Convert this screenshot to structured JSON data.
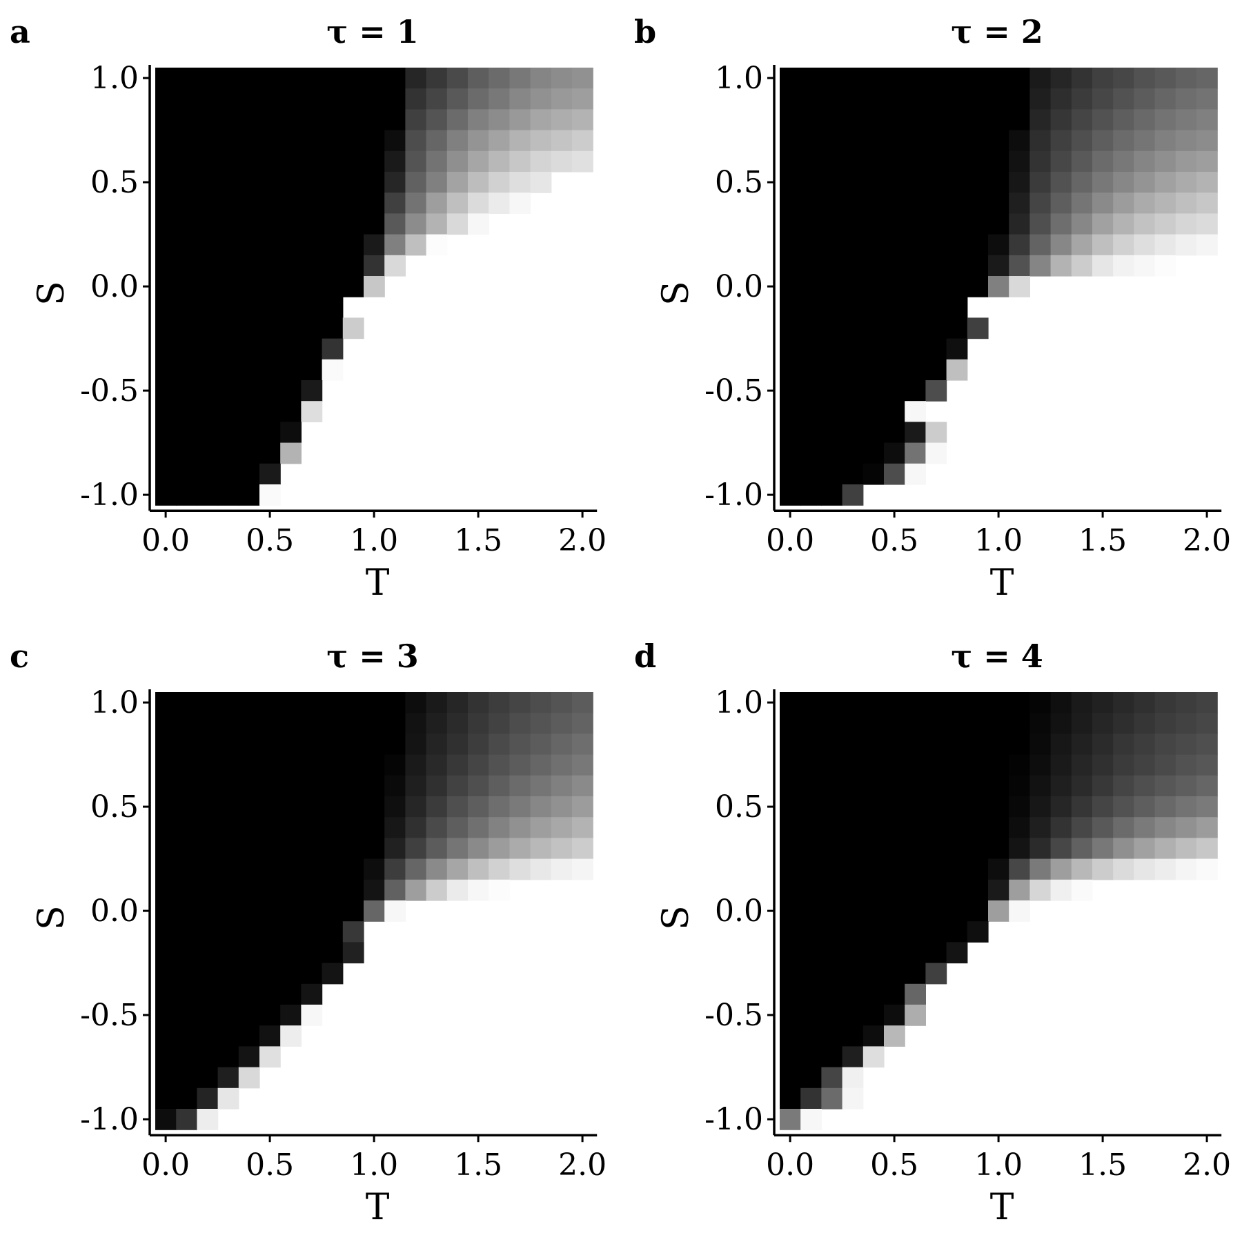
{
  "chart_data": [
    {
      "type": "heatmap",
      "panel_label": "a",
      "title": "τ = 1",
      "xlabel": "T",
      "ylabel": "S",
      "xlim": [
        0,
        2
      ],
      "ylim": [
        -1,
        1
      ],
      "xticks": [
        "0.0",
        "0.5",
        "1.0",
        "1.5",
        "2.0"
      ],
      "yticks": [
        "-1.0",
        "-0.5",
        "0.0",
        "0.5",
        "1.0"
      ],
      "grid_cols": 21,
      "grid_rows": 21,
      "row_order": "top-to-bottom (S from 1.0 down to -1.0)",
      "cell_value": "gray level, 0 = black, 1 = white",
      "boundary_start_col": [
        12,
        12,
        12,
        11,
        11,
        11,
        11,
        11,
        10,
        10,
        10,
        9,
        9,
        8,
        8,
        7,
        7,
        6,
        6,
        5,
        5
      ],
      "boundary_values": [
        [
          0.15,
          0.22,
          0.29,
          0.37,
          0.42,
          0.47,
          0.52,
          0.55,
          0.57,
          0.57
        ],
        [
          0.2,
          0.27,
          0.35,
          0.42,
          0.47,
          0.53,
          0.57,
          0.6,
          0.62,
          0.62
        ],
        [
          0.25,
          0.33,
          0.42,
          0.5,
          0.55,
          0.6,
          0.65,
          0.68,
          0.7,
          0.7
        ],
        [
          0.05,
          0.3,
          0.4,
          0.5,
          0.58,
          0.64,
          0.7,
          0.74,
          0.77,
          0.8,
          0.82
        ],
        [
          0.1,
          0.33,
          0.45,
          0.56,
          0.65,
          0.72,
          0.78,
          0.83,
          0.86,
          0.88,
          0.9
        ],
        [
          0.15,
          0.38,
          0.5,
          0.64,
          0.74,
          0.82,
          0.87,
          0.9,
          1,
          1,
          1
        ],
        [
          0.25,
          0.45,
          0.62,
          0.75,
          0.86,
          0.92,
          0.97,
          1,
          1,
          1,
          1
        ],
        [
          0.35,
          0.55,
          0.7,
          0.85,
          0.97,
          1,
          1,
          1,
          1,
          1,
          1
        ],
        [
          0.1,
          0.5,
          0.75,
          0.99,
          1,
          1,
          1,
          1,
          1,
          1,
          1,
          1
        ],
        [
          0.2,
          0.85,
          1,
          1,
          1,
          1,
          1,
          1,
          1,
          1,
          1,
          1
        ],
        [
          0.78,
          1,
          1,
          1,
          1,
          1,
          1,
          1,
          1,
          1,
          1
        ],
        [
          1
        ],
        [
          0.8
        ],
        [
          0.2
        ],
        [
          0.98
        ],
        [
          0.1
        ],
        [
          0.87
        ],
        [
          0.05
        ],
        [
          0.7
        ],
        [
          0.1
        ],
        [
          0.98
        ]
      ]
    },
    {
      "type": "heatmap",
      "panel_label": "b",
      "title": "τ = 2",
      "xlabel": "T",
      "ylabel": "S",
      "xlim": [
        0,
        2
      ],
      "ylim": [
        -1,
        1
      ],
      "xticks": [
        "0.0",
        "0.5",
        "1.0",
        "1.5",
        "2.0"
      ],
      "yticks": [
        "-1.0",
        "-0.5",
        "0.0",
        "0.5",
        "1.0"
      ],
      "grid_cols": 21,
      "grid_rows": 21,
      "row_order": "top-to-bottom (S from 1.0 down to -1.0)",
      "cell_value": "gray level, 0 = black, 1 = white",
      "boundary_start_col": [
        12,
        12,
        12,
        11,
        11,
        11,
        11,
        11,
        10,
        10,
        10,
        9,
        9,
        8,
        8,
        7,
        6,
        6,
        5,
        4,
        3
      ],
      "boundary_values": [
        [
          0.1,
          0.15,
          0.2,
          0.25,
          0.28,
          0.32,
          0.35,
          0.38,
          0.4,
          0.42
        ],
        [
          0.12,
          0.18,
          0.23,
          0.28,
          0.32,
          0.36,
          0.4,
          0.43,
          0.45,
          0.47
        ],
        [
          0.15,
          0.21,
          0.27,
          0.32,
          0.37,
          0.41,
          0.45,
          0.48,
          0.5,
          0.52
        ],
        [
          0.05,
          0.18,
          0.25,
          0.31,
          0.37,
          0.42,
          0.46,
          0.5,
          0.53,
          0.55,
          0.57
        ],
        [
          0.07,
          0.2,
          0.28,
          0.35,
          0.42,
          0.47,
          0.52,
          0.56,
          0.6,
          0.62,
          0.64
        ],
        [
          0.09,
          0.23,
          0.32,
          0.4,
          0.47,
          0.53,
          0.58,
          0.63,
          0.67,
          0.7,
          0.72
        ],
        [
          0.12,
          0.27,
          0.37,
          0.46,
          0.54,
          0.61,
          0.67,
          0.71,
          0.75,
          0.78,
          0.8
        ],
        [
          0.15,
          0.31,
          0.43,
          0.53,
          0.63,
          0.7,
          0.76,
          0.8,
          0.84,
          0.86,
          0.88
        ],
        [
          0.05,
          0.22,
          0.39,
          0.53,
          0.65,
          0.75,
          0.82,
          0.87,
          0.91,
          0.94,
          0.96,
          0.97
        ],
        [
          0.1,
          0.32,
          0.52,
          0.7,
          0.8,
          0.9,
          0.95,
          0.97,
          0.99,
          1,
          1,
          1
        ],
        [
          0.5,
          0.85,
          1,
          1,
          1,
          1,
          1,
          1,
          1,
          1,
          1
        ],
        [
          1
        ],
        [
          0.25
        ],
        [
          0.06
        ],
        [
          0.75
        ],
        [
          0.3
        ],
        [
          0.97
        ],
        [
          0.1,
          0.8
        ],
        [
          0.05,
          0.45,
          0.97
        ],
        [
          0.02,
          0.3,
          0.97
        ],
        [
          0.25
        ]
      ]
    },
    {
      "type": "heatmap",
      "panel_label": "c",
      "title": "τ = 3",
      "xlabel": "T",
      "ylabel": "S",
      "xlim": [
        0,
        2
      ],
      "ylim": [
        -1,
        1
      ],
      "xticks": [
        "0.0",
        "0.5",
        "1.0",
        "1.5",
        "2.0"
      ],
      "yticks": [
        "-1.0",
        "-0.5",
        "0.0",
        "0.5",
        "1.0"
      ],
      "grid_cols": 21,
      "grid_rows": 21,
      "row_order": "top-to-bottom (S from 1.0 down to -1.0)",
      "cell_value": "gray level, 0 = black, 1 = white",
      "boundary_start_col": [
        12,
        12,
        12,
        11,
        11,
        11,
        11,
        11,
        10,
        10,
        10,
        9,
        9,
        8,
        7,
        6,
        5,
        4,
        3,
        2,
        0
      ],
      "boundary_values": [
        [
          0.05,
          0.1,
          0.15,
          0.2,
          0.24,
          0.27,
          0.3,
          0.33,
          0.36,
          0.38
        ],
        [
          0.07,
          0.12,
          0.17,
          0.22,
          0.26,
          0.3,
          0.33,
          0.36,
          0.39,
          0.41
        ],
        [
          0.08,
          0.14,
          0.19,
          0.24,
          0.29,
          0.33,
          0.36,
          0.4,
          0.43,
          0.45
        ],
        [
          0.02,
          0.1,
          0.16,
          0.22,
          0.27,
          0.32,
          0.36,
          0.4,
          0.44,
          0.47,
          0.5
        ],
        [
          0.04,
          0.12,
          0.19,
          0.26,
          0.31,
          0.37,
          0.42,
          0.46,
          0.5,
          0.54,
          0.57
        ],
        [
          0.06,
          0.15,
          0.23,
          0.31,
          0.37,
          0.43,
          0.48,
          0.53,
          0.57,
          0.61,
          0.64
        ],
        [
          0.09,
          0.19,
          0.29,
          0.37,
          0.44,
          0.51,
          0.57,
          0.62,
          0.66,
          0.7,
          0.73
        ],
        [
          0.13,
          0.25,
          0.36,
          0.46,
          0.54,
          0.61,
          0.67,
          0.72,
          0.76,
          0.8,
          0.83
        ],
        [
          0.05,
          0.24,
          0.4,
          0.54,
          0.65,
          0.75,
          0.82,
          0.87,
          0.91,
          0.94,
          0.96,
          0.97
        ],
        [
          0.08,
          0.38,
          0.62,
          0.8,
          0.92,
          0.97,
          0.99,
          1,
          1,
          1,
          1,
          1
        ],
        [
          0.4,
          0.97,
          1,
          1,
          1,
          1,
          1,
          1,
          1,
          1,
          1
        ],
        [
          0.22
        ],
        [
          0.13
        ],
        [
          0.08
        ],
        [
          0.08
        ],
        [
          0.07,
          0.97
        ],
        [
          0.07,
          0.93
        ],
        [
          0.08,
          0.88
        ],
        [
          0.12,
          0.85
        ],
        [
          0.14,
          0.9
        ],
        [
          0.05,
          0.2,
          0.93
        ]
      ]
    },
    {
      "type": "heatmap",
      "panel_label": "d",
      "title": "τ = 4",
      "xlabel": "T",
      "ylabel": "S",
      "xlim": [
        0,
        2
      ],
      "ylim": [
        -1,
        1
      ],
      "xticks": [
        "0.0",
        "0.5",
        "1.0",
        "1.5",
        "2.0"
      ],
      "yticks": [
        "-1.0",
        "-0.5",
        "0.0",
        "0.5",
        "1.0"
      ],
      "grid_cols": 21,
      "grid_rows": 21,
      "row_order": "top-to-bottom (S from 1.0 down to -1.0)",
      "cell_value": "gray level, 0 = black, 1 = white",
      "boundary_start_col": [
        12,
        12,
        12,
        11,
        11,
        11,
        11,
        11,
        10,
        10,
        10,
        9,
        8,
        7,
        6,
        5,
        4,
        3,
        2,
        1,
        0
      ],
      "boundary_values": [
        [
          0.02,
          0.06,
          0.1,
          0.13,
          0.16,
          0.19,
          0.22,
          0.24,
          0.26,
          0.28
        ],
        [
          0.03,
          0.07,
          0.11,
          0.15,
          0.18,
          0.21,
          0.24,
          0.26,
          0.28,
          0.3
        ],
        [
          0.04,
          0.09,
          0.13,
          0.17,
          0.21,
          0.24,
          0.27,
          0.29,
          0.31,
          0.33
        ],
        [
          0.01,
          0.05,
          0.1,
          0.15,
          0.19,
          0.23,
          0.26,
          0.29,
          0.32,
          0.34,
          0.36
        ],
        [
          0.02,
          0.07,
          0.12,
          0.17,
          0.22,
          0.27,
          0.31,
          0.34,
          0.37,
          0.4,
          0.42
        ],
        [
          0.03,
          0.09,
          0.15,
          0.21,
          0.27,
          0.32,
          0.37,
          0.41,
          0.45,
          0.48,
          0.5
        ],
        [
          0.05,
          0.12,
          0.2,
          0.28,
          0.35,
          0.42,
          0.48,
          0.53,
          0.57,
          0.61,
          0.64
        ],
        [
          0.08,
          0.17,
          0.28,
          0.38,
          0.47,
          0.56,
          0.63,
          0.69,
          0.74,
          0.78,
          0.81
        ],
        [
          0.05,
          0.28,
          0.48,
          0.62,
          0.72,
          0.8,
          0.86,
          0.9,
          0.93,
          0.96,
          0.98,
          0.99
        ],
        [
          0.1,
          0.62,
          0.84,
          0.94,
          0.98,
          1,
          1,
          1,
          1,
          1,
          1,
          1
        ],
        [
          0.62,
          0.97,
          1,
          1,
          1,
          1,
          1,
          1,
          1,
          1,
          1
        ],
        [
          0.06
        ],
        [
          0.08
        ],
        [
          0.25
        ],
        [
          0.4
        ],
        [
          0.05,
          0.68
        ],
        [
          0.05,
          0.72
        ],
        [
          0.12,
          0.87
        ],
        [
          0.27,
          0.94
        ],
        [
          0.2,
          0.42,
          0.96
        ],
        [
          0.48,
          0.97
        ]
      ]
    }
  ]
}
